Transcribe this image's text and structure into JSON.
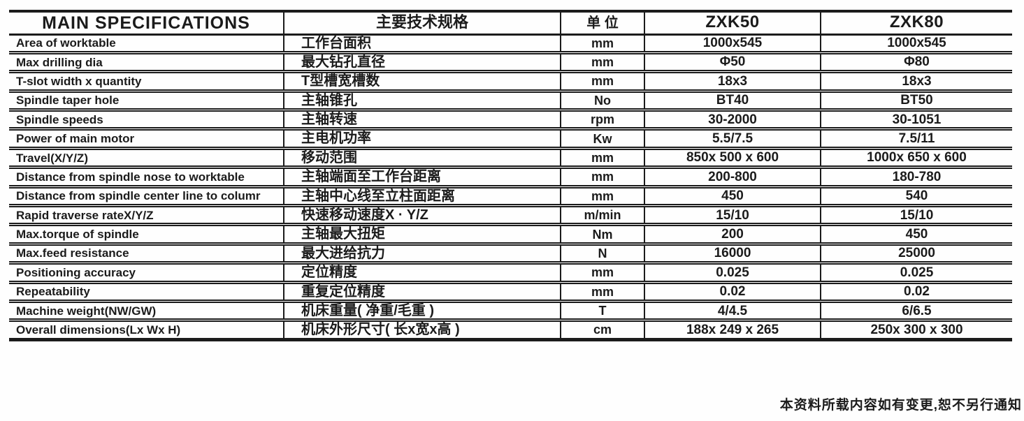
{
  "header": {
    "col_en": "MAIN SPECIFICATIONS",
    "col_zh": "主要技术规格",
    "col_unit": "单 位",
    "col_model1": "ZXK50",
    "col_model2": "ZXK80"
  },
  "rows": [
    {
      "en": "Area of worktable",
      "zh": "工作台面积",
      "unit": "mm",
      "zxk50": "1000x545",
      "zxk80": "1000x545"
    },
    {
      "en": "Max drilling dia",
      "zh": "最大钻孔直径",
      "unit": "mm",
      "zxk50": "Φ50",
      "zxk80": "Φ80"
    },
    {
      "en": "T-slot width x quantity",
      "zh": "T型槽宽槽数",
      "unit": "mm",
      "zxk50": "18x3",
      "zxk80": "18x3"
    },
    {
      "en": "Spindle taper hole",
      "zh": "主轴锥孔",
      "unit": "No",
      "zxk50": "BT40",
      "zxk80": "BT50"
    },
    {
      "en": "Spindle speeds",
      "zh": "主轴转速",
      "unit": "rpm",
      "zxk50": "30-2000",
      "zxk80": "30-1051"
    },
    {
      "en": "Power of main motor",
      "zh": "主电机功率",
      "unit": "Kw",
      "zxk50": "5.5/7.5",
      "zxk80": "7.5/11"
    },
    {
      "en": "Travel(X/Y/Z)",
      "zh": "移动范围",
      "unit": "mm",
      "zxk50": "850x 500 x 600",
      "zxk80": "1000x 650 x 600"
    },
    {
      "en": "Distance from spindle nose to worktable",
      "zh": "主轴端面至工作台距离",
      "unit": "mm",
      "zxk50": "200-800",
      "zxk80": "180-780"
    },
    {
      "en": "Distance from spindle center line to columr",
      "zh": "主轴中心线至立柱面距离",
      "unit": "mm",
      "zxk50": "450",
      "zxk80": "540"
    },
    {
      "en": "Rapid traverse rateX/Y/Z",
      "zh": "快速移动速度X · Y/Z",
      "unit": "m/min",
      "zxk50": "15/10",
      "zxk80": "15/10"
    },
    {
      "en": "Max.torque of spindle",
      "zh": "主轴最大扭矩",
      "unit": "Nm",
      "zxk50": "200",
      "zxk80": "450"
    },
    {
      "en": "Max.feed resistance",
      "zh": "最大进给抗力",
      "unit": "N",
      "zxk50": "16000",
      "zxk80": "25000"
    },
    {
      "en": "Positioning accuracy",
      "zh": "定位精度",
      "unit": "mm",
      "zxk50": "0.025",
      "zxk80": "0.025"
    },
    {
      "en": "Repeatability",
      "zh": "重复定位精度",
      "unit": "mm",
      "zxk50": "0.02",
      "zxk80": "0.02"
    },
    {
      "en": "Machine weight(NW/GW)",
      "zh": "机床重量( 净重/毛重 )",
      "unit": "T",
      "zxk50": "4/4.5",
      "zxk80": "6/6.5"
    },
    {
      "en": "Overall dimensions(Lx Wx H)",
      "zh": "机床外形尺寸( 长x宽x高 )",
      "unit": "cm",
      "zxk50": "188x 249 x 265",
      "zxk80": "250x 300 x 300"
    }
  ],
  "footer": {
    "note": "本资料所载内容如有变更,恕不另行通知"
  }
}
